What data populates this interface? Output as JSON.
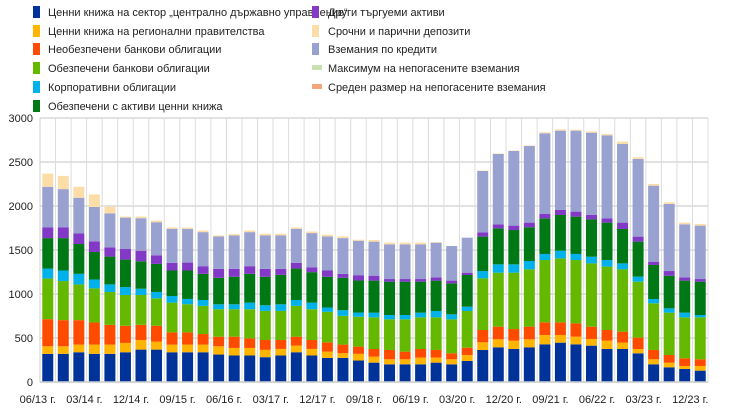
{
  "chart_data": {
    "type": "bar",
    "stacked": true,
    "title": "",
    "xlabel": "",
    "ylabel": "",
    "ylim": [
      0,
      3000
    ],
    "yticks": [
      "0",
      "500",
      "1000",
      "1500",
      "2000",
      "2500",
      "3000"
    ],
    "grid": true,
    "legend_position": "top",
    "categories": [
      "06/13 г.",
      "09/13 г.",
      "12/13 г.",
      "03/14 г.",
      "06/14 г.",
      "09/14 г.",
      "12/14 г.",
      "03/15 г.",
      "06/15 г.",
      "09/15 г.",
      "12/15 г.",
      "03/16 г.",
      "06/16 г.",
      "09/16 г.",
      "12/16 г.",
      "03/17 г.",
      "06/17 г.",
      "09/17 г.",
      "12/17 г.",
      "03/18 г.",
      "06/18 г.",
      "09/18 г.",
      "12/18 г.",
      "03/19 г.",
      "06/19 г.",
      "09/19 г.",
      "12/19 г.",
      "03/20 г.",
      "06/20 г.",
      "09/20 г.",
      "12/20 г.",
      "03/21 г.",
      "06/21 г.",
      "09/21 г.",
      "12/21 г.",
      "03/22 г.",
      "06/22 г.",
      "09/22 г.",
      "12/22 г.",
      "03/23 г.",
      "06/23 г.",
      "09/23 г.",
      "12/23 г."
    ],
    "tick_labels": [
      "06/13 г.",
      "03/14 г.",
      "12/14 г.",
      "09/15 г.",
      "06/16 г.",
      "03/17 г.",
      "12/17 г.",
      "09/18 г.",
      "06/19 г.",
      "03/20 г.",
      "12/20 г.",
      "09/21 г.",
      "06/22 г.",
      "03/23 г.",
      "12/23 г."
    ],
    "series": [
      {
        "name": "Ценни книжа на сектор „централно държавно управление“",
        "color": "#003399",
        "values": [
          320,
          320,
          338,
          320,
          320,
          338,
          368,
          368,
          338,
          338,
          338,
          312,
          301,
          301,
          282,
          301,
          338,
          301,
          274,
          274,
          244,
          220,
          201,
          201,
          201,
          220,
          201,
          239,
          364,
          394,
          375,
          394,
          428,
          447,
          428,
          413,
          375,
          375,
          326,
          201,
          167,
          148,
          129
        ]
      },
      {
        "name": "Ценни книжа на регионални правителства",
        "color": "#FFB400",
        "values": [
          86,
          86,
          87,
          105,
          105,
          106,
          109,
          91,
          87,
          87,
          87,
          94,
          86,
          86,
          83,
          75,
          76,
          75,
          72,
          53,
          76,
          68,
          57,
          57,
          76,
          57,
          57,
          68,
          87,
          91,
          95,
          91,
          106,
          87,
          87,
          76,
          95,
          72,
          49,
          57,
          53,
          34,
          53
        ]
      },
      {
        "name": "Необезпечени банкови облигации",
        "color": "#FF4B00",
        "values": [
          308,
          297,
          278,
          252,
          225,
          195,
          173,
          180,
          139,
          139,
          120,
          109,
          128,
          109,
          112,
          101,
          101,
          101,
          105,
          98,
          82,
          87,
          106,
          87,
          98,
          87,
          68,
          83,
          140,
          144,
          132,
          144,
          144,
          144,
          152,
          140,
          121,
          125,
          129,
          106,
          87,
          87,
          76
        ]
      },
      {
        "name": "Обезпечени банкови облигации",
        "color": "#65B800",
        "values": [
          463,
          444,
          406,
          387,
          373,
          350,
          339,
          312,
          338,
          320,
          320,
          312,
          312,
          331,
          331,
          331,
          350,
          350,
          346,
          327,
          339,
          360,
          348,
          367,
          360,
          371,
          386,
          417,
          587,
          613,
          640,
          651,
          708,
          727,
          719,
          719,
          720,
          708,
          636,
          530,
          481,
          466,
          477
        ]
      },
      {
        "name": "Корпоративни облигации",
        "color": "#00B1EA",
        "values": [
          112,
          120,
          120,
          101,
          86,
          90,
          71,
          72,
          75,
          60,
          67,
          56,
          56,
          75,
          64,
          75,
          67,
          75,
          49,
          64,
          48,
          53,
          49,
          49,
          53,
          72,
          57,
          49,
          83,
          95,
          95,
          95,
          69,
          87,
          69,
          76,
          75,
          68,
          57,
          49,
          49,
          53,
          26
        ]
      },
      {
        "name": "Обезпечени с активи ценни книжа",
        "color": "#007816",
        "values": [
          346,
          368,
          339,
          312,
          316,
          312,
          312,
          319,
          290,
          323,
          297,
          301,
          312,
          327,
          323,
          335,
          357,
          346,
          349,
          368,
          365,
          364,
          379,
          379,
          352,
          345,
          352,
          360,
          391,
          409,
          390,
          383,
          405,
          406,
          424,
          424,
          425,
          391,
          398,
          387,
          371,
          364,
          379
        ]
      },
      {
        "name": "Други търгуеми активи",
        "color": "#8139C6",
        "values": [
          121,
          121,
          120,
          121,
          105,
          120,
          120,
          98,
          86,
          90,
          87,
          102,
          91,
          87,
          91,
          68,
          64,
          56,
          72,
          45,
          60,
          56,
          30,
          30,
          30,
          37,
          31,
          26,
          49,
          46,
          50,
          53,
          49,
          57,
          57,
          50,
          49,
          72,
          57,
          37,
          53,
          37,
          30
        ]
      },
      {
        "name": "Вземания по кредити",
        "color": "#98A1D0",
        "values": [
          462,
          436,
          406,
          391,
          387,
          357,
          369,
          376,
          388,
          383,
          387,
          368,
          379,
          387,
          379,
          379,
          388,
          388,
          387,
          406,
          391,
          387,
          394,
          394,
          394,
          394,
          393,
          398,
          697,
          799,
          848,
          871,
          917,
          901,
          920,
          935,
          943,
          894,
          882,
          864,
          762,
          603,
          607
        ]
      },
      {
        "name": "Срочни и парични депозити",
        "color": "#FDDDA7",
        "values": [
          150,
          150,
          124,
          143,
          75,
          12,
          19,
          19,
          15,
          15,
          19,
          11,
          15,
          19,
          19,
          19,
          15,
          18,
          19,
          19,
          12,
          19,
          19,
          19,
          19,
          7,
          0,
          0,
          5,
          5,
          5,
          5,
          11,
          15,
          11,
          15,
          15,
          26,
          19,
          19,
          19,
          19,
          18
        ]
      }
    ],
    "legend": {
      "col1": [
        {
          "label": "Ценни книжа на сектор „централно държавно управление“",
          "color": "#003399",
          "marker": "square"
        },
        {
          "label": "Ценни книжа на регионални правителства",
          "color": "#FFB400",
          "marker": "square"
        },
        {
          "label": "Необезпечени банкови облигации",
          "color": "#FF4B00",
          "marker": "square"
        },
        {
          "label": "Обезпечени банкови облигации",
          "color": "#65B800",
          "marker": "square"
        },
        {
          "label": "Корпоративни облигации",
          "color": "#00B1EA",
          "marker": "square"
        },
        {
          "label": "Обезпечени с активи ценни книжа",
          "color": "#007816",
          "marker": "square"
        }
      ],
      "col2": [
        {
          "label": "Други търгуеми активи",
          "color": "#8139C6",
          "marker": "square"
        },
        {
          "label": "Срочни и парични депозити",
          "color": "#FDDDA7",
          "marker": "square"
        },
        {
          "label": "Вземания по кредити",
          "color": "#98A1D0",
          "marker": "square"
        },
        {
          "label": "Максимум на непогасените вземания",
          "color": "#C9E0B0",
          "marker": "line"
        },
        {
          "label": "Среден размер на непогасените вземания",
          "color": "#F3A67C",
          "marker": "line"
        }
      ]
    }
  }
}
